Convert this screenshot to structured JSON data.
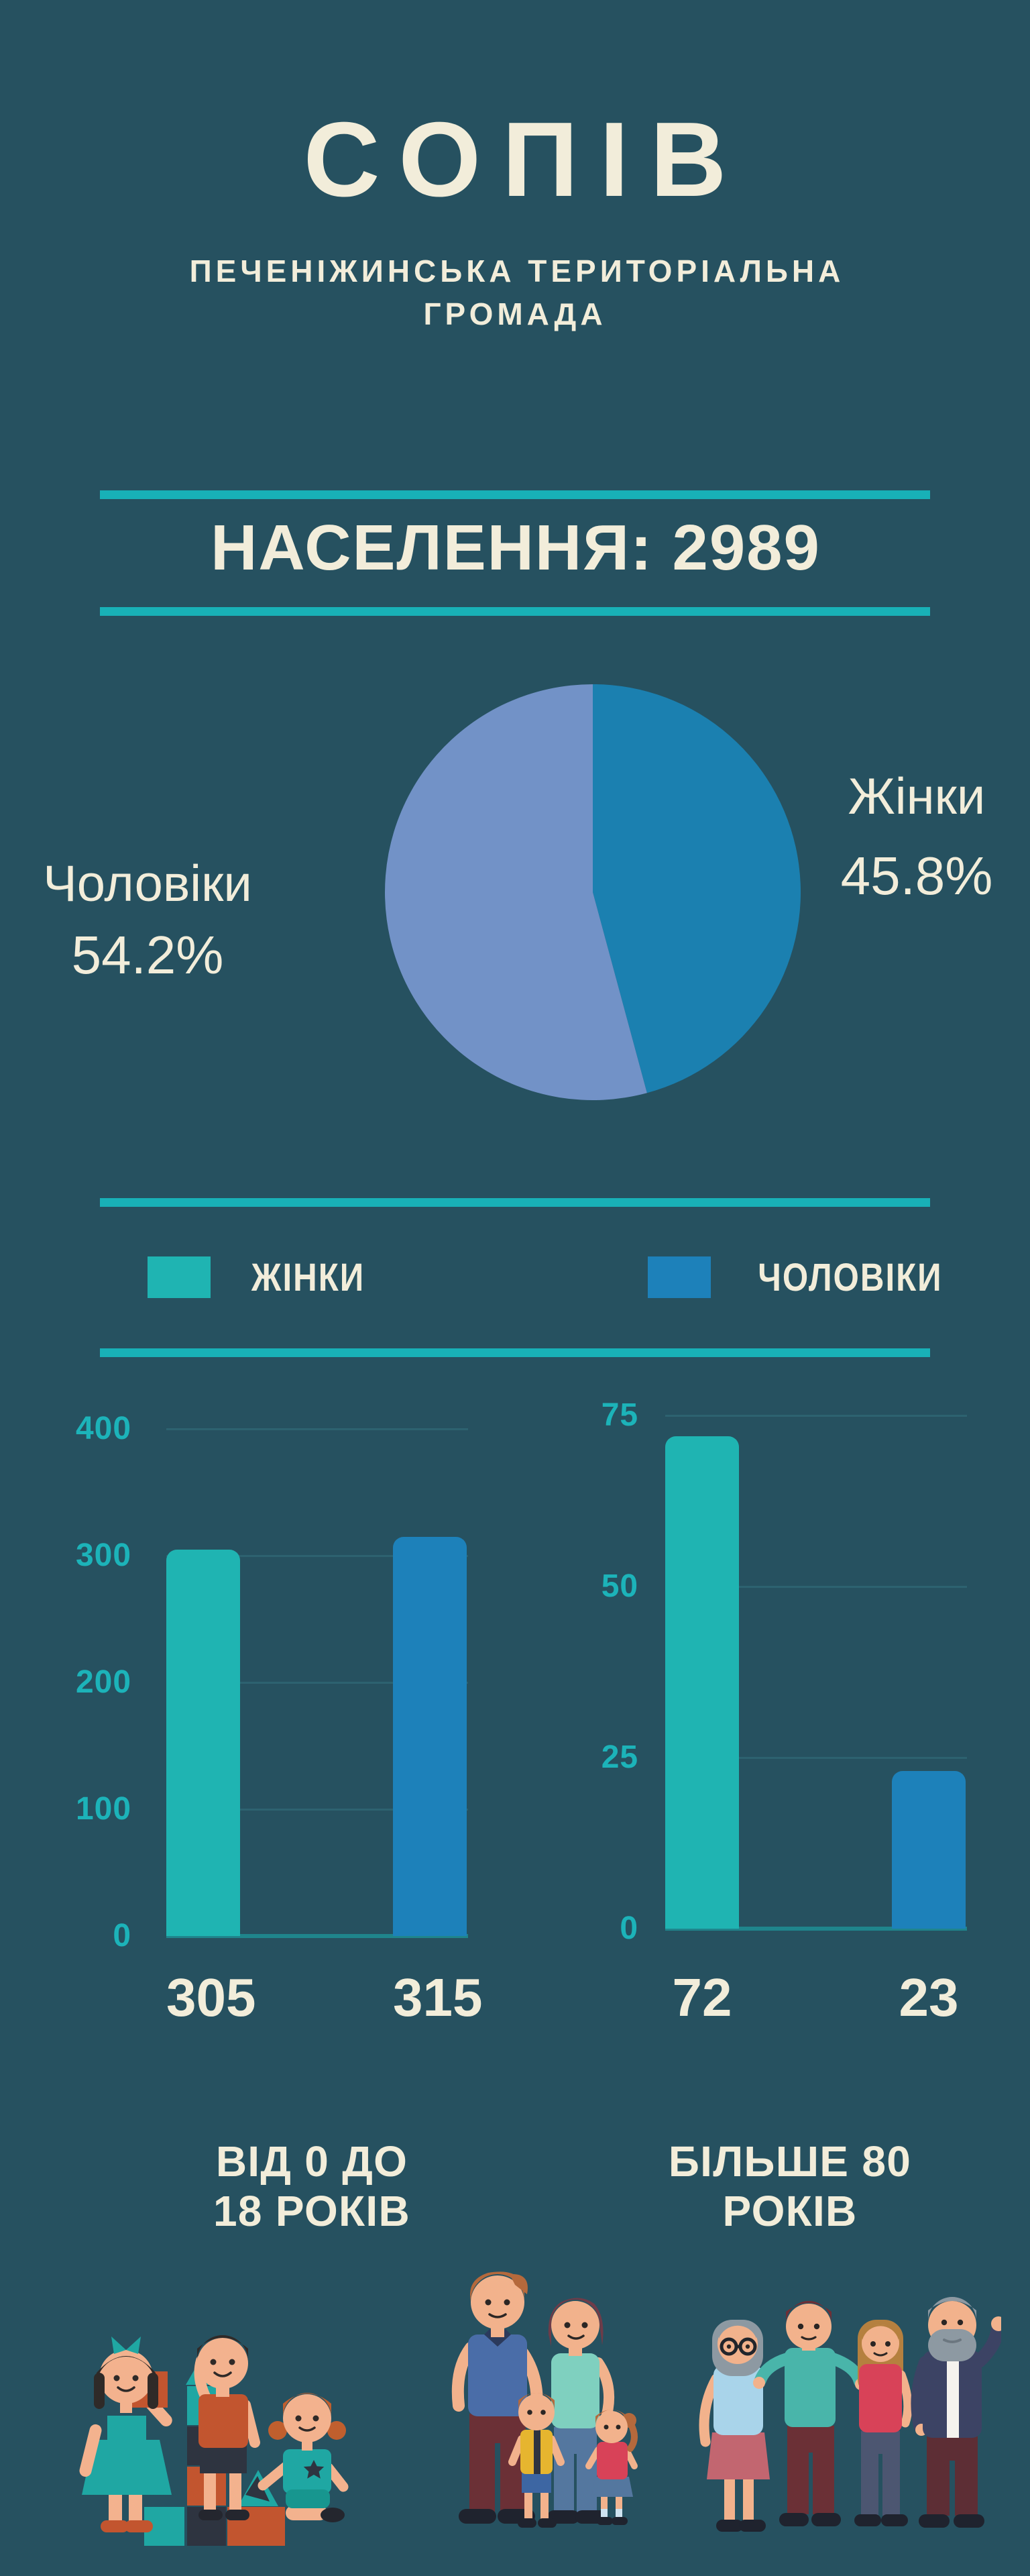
{
  "colors": {
    "background": "#265160",
    "accent_teal": "#18b1b7",
    "cream_text": "#f2edda",
    "axis_teal": "#1cb3b9",
    "bar_teal": "#1fb4b2",
    "bar_blue": "#1d81ba",
    "pie_blue": "#1b80b0",
    "pie_periwinkle": "#7292c7"
  },
  "header": {
    "title": "СОПІВ",
    "subtitle_line1": "ПЕЧЕНІЖИНСЬКА ТЕРИТОРІАЛЬНА",
    "subtitle_line2": "ГРОМАДА"
  },
  "population": {
    "label": "НАСЕЛЕННЯ: 2989"
  },
  "pie_labels": {
    "right_name": "Жінки",
    "right_value": "45.8%",
    "left_name": "Чоловіки",
    "left_value": "54.2%"
  },
  "legend": [
    {
      "label": "ЖІНКИ",
      "color": "#1fb4b2"
    },
    {
      "label": "ЧОЛОВІКИ",
      "color": "#1d81ba"
    }
  ],
  "age_groups": [
    {
      "line1": "ВІД 0 ДО",
      "line2": "18 РОКІВ"
    },
    {
      "line1": "БІЛЬШЕ 80",
      "line2": "РОКІВ"
    }
  ],
  "illustrations": {
    "left": "children-playing-with-blocks",
    "middle": "family-with-two-children",
    "right": "adults-and-elderly-group"
  },
  "chart_data": [
    {
      "type": "pie",
      "title": "НАСЕЛЕННЯ: 2989",
      "labels": [
        "Жінки",
        "Чоловіки"
      ],
      "values": [
        45.8,
        54.2
      ],
      "unit": "%",
      "colors": [
        "#1b80b0",
        "#7292c7"
      ],
      "start_angle": "top",
      "direction": "clockwise",
      "legend_position": "sides"
    },
    {
      "type": "bar",
      "title": "ВІД 0 ДО 18 РОКІВ",
      "categories": [
        "ЖІНКИ",
        "ЧОЛОВІКИ"
      ],
      "values": [
        305,
        315
      ],
      "colors": [
        "#1fb4b2",
        "#1d81ba"
      ],
      "ylim": [
        0,
        400
      ],
      "yticks": [
        0,
        100,
        200,
        300,
        400
      ],
      "grid": true,
      "value_labels": "below-bars"
    },
    {
      "type": "bar",
      "title": "БІЛЬШЕ 80 РОКІВ",
      "categories": [
        "ЖІНКИ",
        "ЧОЛОВІКИ"
      ],
      "values": [
        72,
        23
      ],
      "colors": [
        "#1fb4b2",
        "#1d81ba"
      ],
      "ylim": [
        0,
        75
      ],
      "yticks": [
        0,
        25,
        50,
        75
      ],
      "grid": true,
      "value_labels": "below-bars"
    }
  ]
}
